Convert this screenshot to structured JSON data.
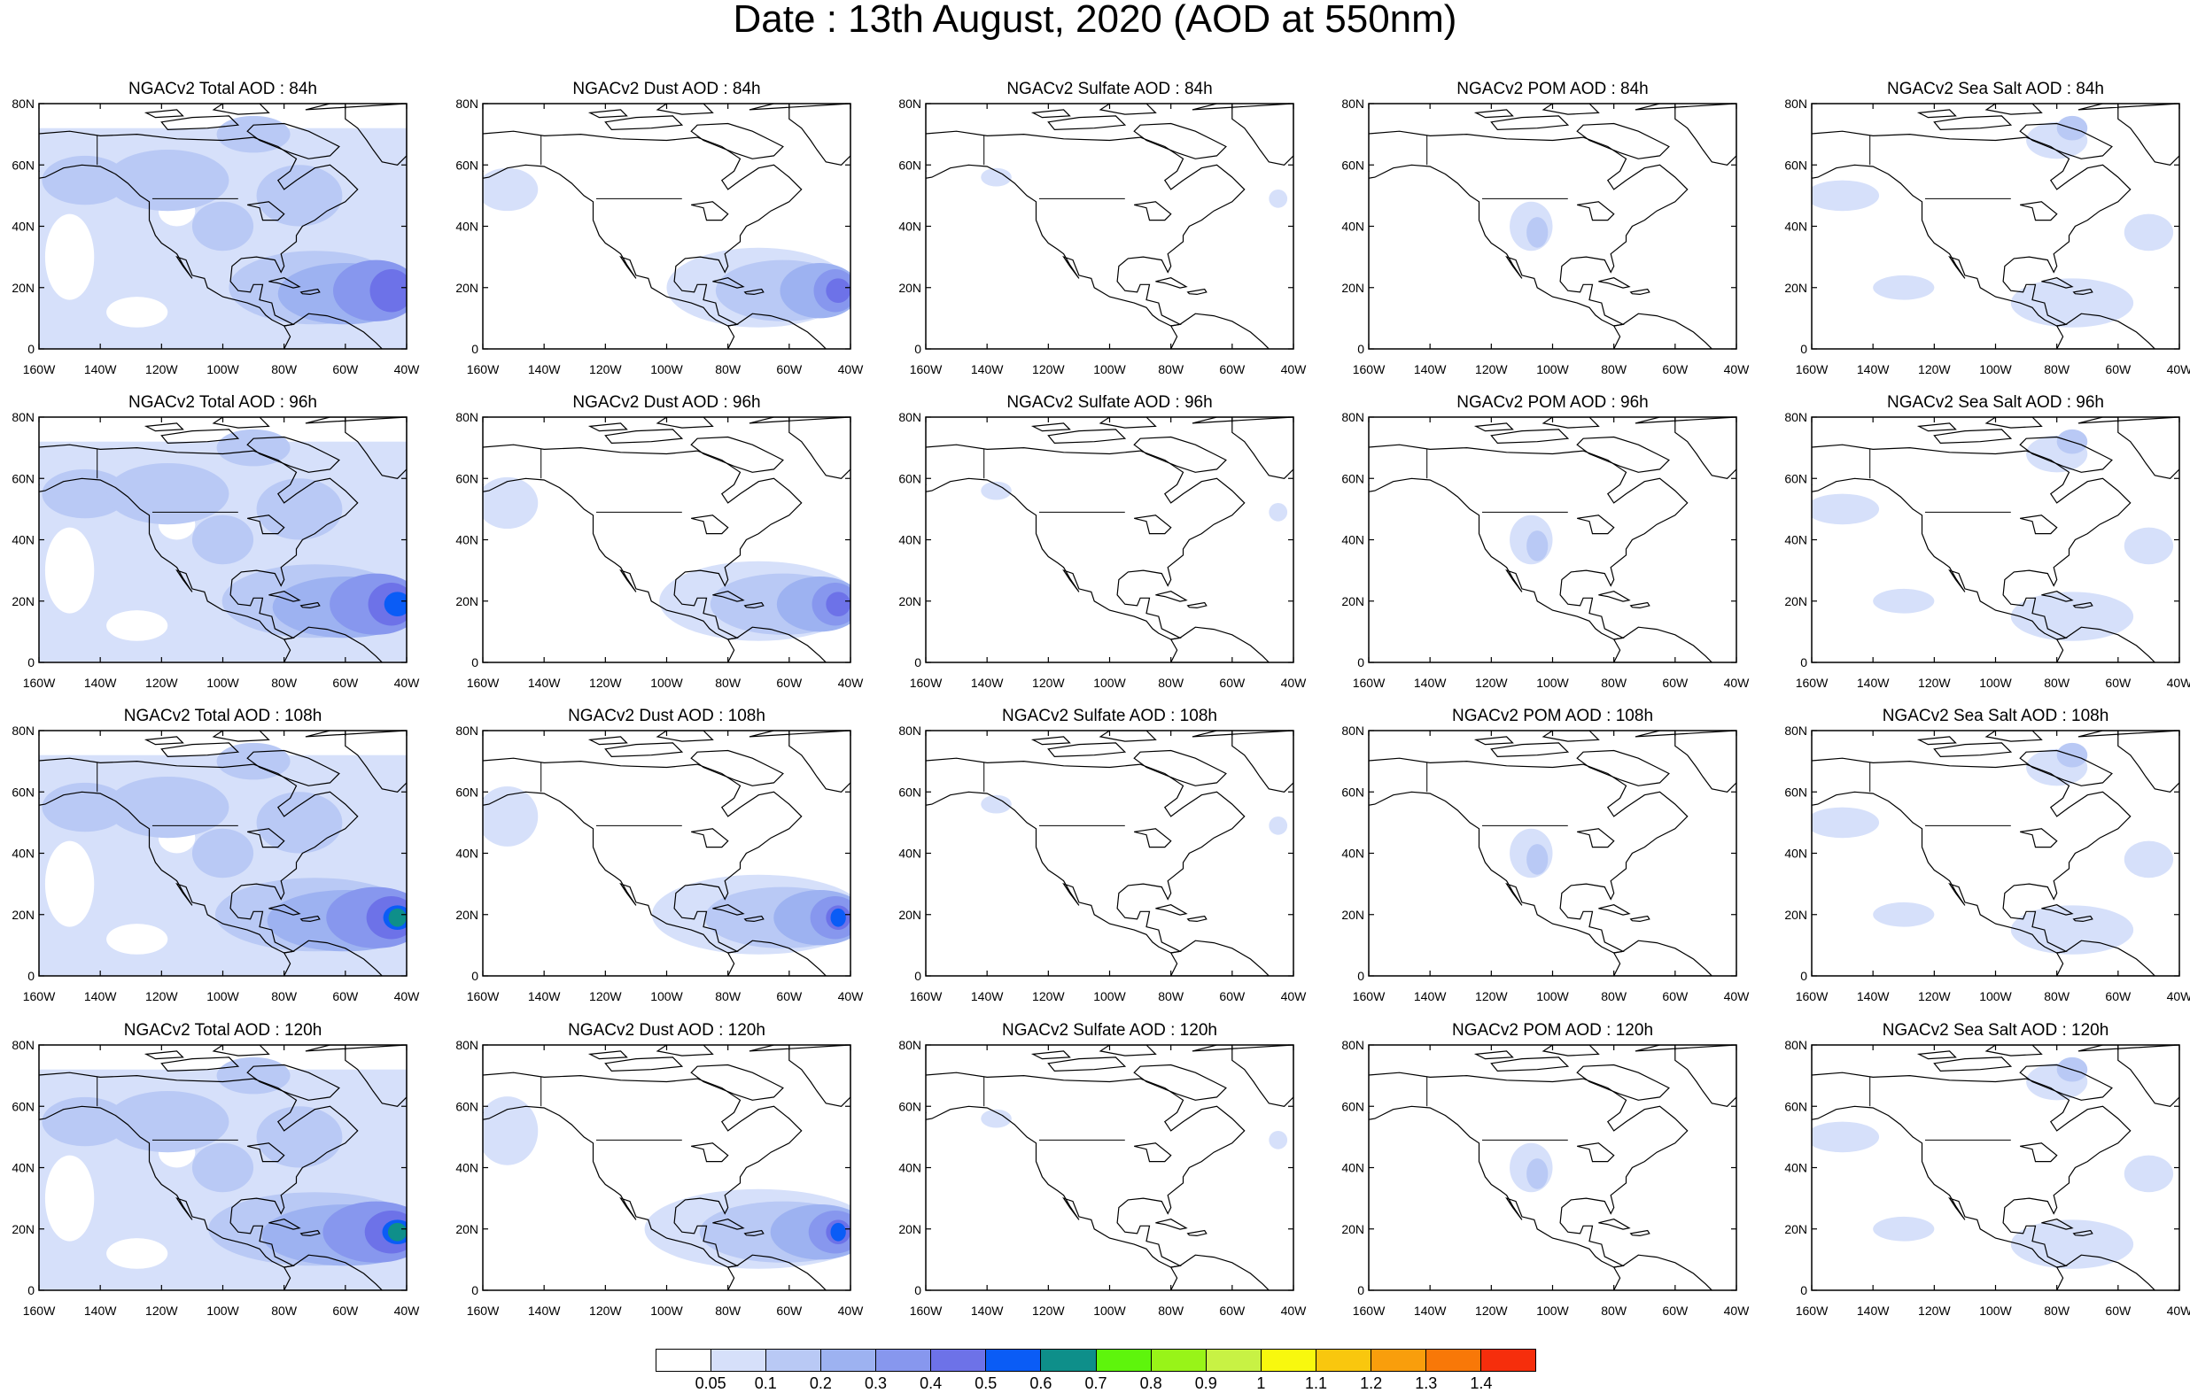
{
  "title": "Date : 13th August, 2020 (AOD at 550nm)",
  "panel_titles": [
    [
      "NGACv2 Total AOD : 84h",
      "NGACv2 Dust AOD : 84h",
      "NGACv2 Sulfate AOD : 84h",
      "NGACv2 POM AOD : 84h",
      "NGACv2 Sea Salt AOD : 84h"
    ],
    [
      "NGACv2 Total AOD : 96h",
      "NGACv2 Dust AOD : 96h",
      "NGACv2 Sulfate AOD : 96h",
      "NGACv2 POM AOD : 96h",
      "NGACv2 Sea Salt AOD : 96h"
    ],
    [
      "NGACv2 Total AOD : 108h",
      "NGACv2 Dust AOD : 108h",
      "NGACv2 Sulfate AOD : 108h",
      "NGACv2 POM AOD : 108h",
      "NGACv2 Sea Salt AOD : 108h"
    ],
    [
      "NGACv2 Total AOD : 120h",
      "NGACv2 Dust AOD : 120h",
      "NGACv2 Sulfate AOD : 120h",
      "NGACv2 POM AOD : 120h",
      "NGACv2 Sea Salt AOD : 120h"
    ]
  ],
  "lat_ticks": [
    "80N",
    "60N",
    "40N",
    "20N",
    "0"
  ],
  "lon_ticks": [
    "160W",
    "140W",
    "120W",
    "100W",
    "80W",
    "60W",
    "40W"
  ],
  "colorbar": {
    "colors": [
      "#ffffff",
      "#d6e0fa",
      "#b9c9f5",
      "#9db2f1",
      "#8797ee",
      "#6d72e8",
      "#0a5cf6",
      "#0e8f8a",
      "#5ef50c",
      "#98f418",
      "#c8f244",
      "#f8f80e",
      "#f9c70e",
      "#f99e0c",
      "#f87808",
      "#f62e0c"
    ],
    "labels": [
      "0.05",
      "0.1",
      "0.2",
      "0.3",
      "0.4",
      "0.5",
      "0.6",
      "0.7",
      "0.8",
      "0.9",
      "1",
      "1.1",
      "1.2",
      "1.3",
      "1.4"
    ]
  },
  "panel_types": [
    "total",
    "dust",
    "sulfate",
    "pom",
    "seasalt"
  ],
  "forecast_hours": [
    "84h",
    "96h",
    "108h",
    "120h"
  ]
}
